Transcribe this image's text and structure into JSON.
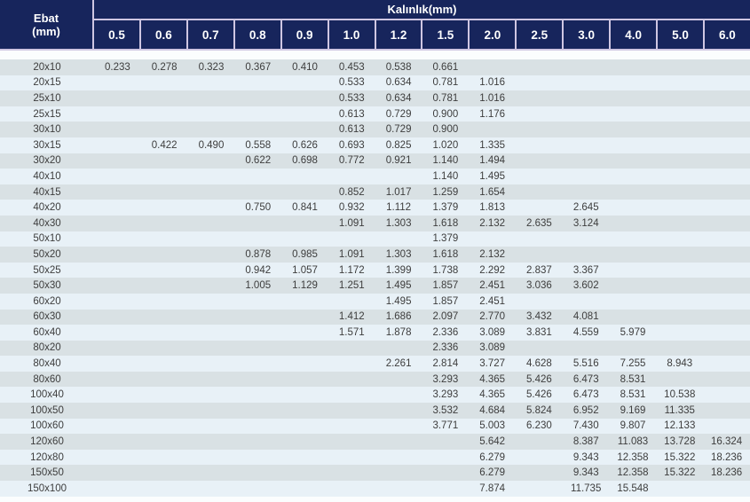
{
  "header": {
    "size_label_line1": "Ebat",
    "size_label_line2": "(mm)",
    "thickness_title": "Kalınlık(mm)"
  },
  "colors": {
    "header_bg": "#17255c",
    "header_border": "#cfc6e2",
    "row_odd": "#d9e1e4",
    "row_even": "#e8f1f7",
    "text": "#3d3d3d"
  },
  "chart_data": {
    "type": "table",
    "title": "Kalınlık(mm)",
    "row_header_label": "Ebat (mm)",
    "columns": [
      "0.5",
      "0.6",
      "0.7",
      "0.8",
      "0.9",
      "1.0",
      "1.2",
      "1.5",
      "2.0",
      "2.5",
      "3.0",
      "4.0",
      "5.0",
      "6.0"
    ],
    "rows": [
      {
        "size": "20x10",
        "values": [
          "0.233",
          "0.278",
          "0.323",
          "0.367",
          "0.410",
          "0.453",
          "0.538",
          "0.661",
          "",
          "",
          "",
          "",
          "",
          ""
        ]
      },
      {
        "size": "20x15",
        "values": [
          "",
          "",
          "",
          "",
          "",
          "0.533",
          "0.634",
          "0.781",
          "1.016",
          "",
          "",
          "",
          "",
          ""
        ]
      },
      {
        "size": "25x10",
        "values": [
          "",
          "",
          "",
          "",
          "",
          "0.533",
          "0.634",
          "0.781",
          "1.016",
          "",
          "",
          "",
          "",
          ""
        ]
      },
      {
        "size": "25x15",
        "values": [
          "",
          "",
          "",
          "",
          "",
          "0.613",
          "0.729",
          "0.900",
          "1.176",
          "",
          "",
          "",
          "",
          ""
        ]
      },
      {
        "size": "30x10",
        "values": [
          "",
          "",
          "",
          "",
          "",
          "0.613",
          "0.729",
          "0.900",
          "",
          "",
          "",
          "",
          "",
          ""
        ]
      },
      {
        "size": "30x15",
        "values": [
          "",
          "0.422",
          "0.490",
          "0.558",
          "0.626",
          "0.693",
          "0.825",
          "1.020",
          "1.335",
          "",
          "",
          "",
          "",
          ""
        ]
      },
      {
        "size": "30x20",
        "values": [
          "",
          "",
          "",
          "0.622",
          "0.698",
          "0.772",
          "0.921",
          "1.140",
          "1.494",
          "",
          "",
          "",
          "",
          ""
        ]
      },
      {
        "size": "40x10",
        "values": [
          "",
          "",
          "",
          "",
          "",
          "",
          "",
          "1.140",
          "1.495",
          "",
          "",
          "",
          "",
          ""
        ]
      },
      {
        "size": "40x15",
        "values": [
          "",
          "",
          "",
          "",
          "",
          "0.852",
          "1.017",
          "1.259",
          "1.654",
          "",
          "",
          "",
          "",
          ""
        ]
      },
      {
        "size": "40x20",
        "values": [
          "",
          "",
          "",
          "0.750",
          "0.841",
          "0.932",
          "1.112",
          "1.379",
          "1.813",
          "",
          "2.645",
          "",
          "",
          ""
        ]
      },
      {
        "size": "40x30",
        "values": [
          "",
          "",
          "",
          "",
          "",
          "1.091",
          "1.303",
          "1.618",
          "2.132",
          "2.635",
          "3.124",
          "",
          "",
          ""
        ]
      },
      {
        "size": "50x10",
        "values": [
          "",
          "",
          "",
          "",
          "",
          "",
          "",
          "1.379",
          "",
          "",
          "",
          "",
          "",
          ""
        ]
      },
      {
        "size": "50x20",
        "values": [
          "",
          "",
          "",
          "0.878",
          "0.985",
          "1.091",
          "1.303",
          "1.618",
          "2.132",
          "",
          "",
          "",
          "",
          ""
        ]
      },
      {
        "size": "50x25",
        "values": [
          "",
          "",
          "",
          "0.942",
          "1.057",
          "1.172",
          "1.399",
          "1.738",
          "2.292",
          "2.837",
          "3.367",
          "",
          "",
          ""
        ]
      },
      {
        "size": "50x30",
        "values": [
          "",
          "",
          "",
          "1.005",
          "1.129",
          "1.251",
          "1.495",
          "1.857",
          "2.451",
          "3.036",
          "3.602",
          "",
          "",
          ""
        ]
      },
      {
        "size": "60x20",
        "values": [
          "",
          "",
          "",
          "",
          "",
          "",
          "1.495",
          "1.857",
          "2.451",
          "",
          "",
          "",
          "",
          ""
        ]
      },
      {
        "size": "60x30",
        "values": [
          "",
          "",
          "",
          "",
          "",
          "1.412",
          "1.686",
          "2.097",
          "2.770",
          "3.432",
          "4.081",
          "",
          "",
          ""
        ]
      },
      {
        "size": "60x40",
        "values": [
          "",
          "",
          "",
          "",
          "",
          "1.571",
          "1.878",
          "2.336",
          "3.089",
          "3.831",
          "4.559",
          "5.979",
          "",
          ""
        ]
      },
      {
        "size": "80x20",
        "values": [
          "",
          "",
          "",
          "",
          "",
          "",
          "",
          "2.336",
          "3.089",
          "",
          "",
          "",
          "",
          ""
        ]
      },
      {
        "size": "80x40",
        "values": [
          "",
          "",
          "",
          "",
          "",
          "",
          "2.261",
          "2.814",
          "3.727",
          "4.628",
          "5.516",
          "7.255",
          "8.943",
          ""
        ]
      },
      {
        "size": "80x60",
        "values": [
          "",
          "",
          "",
          "",
          "",
          "",
          "",
          "3.293",
          "4.365",
          "5.426",
          "6.473",
          "8.531",
          "",
          ""
        ]
      },
      {
        "size": "100x40",
        "values": [
          "",
          "",
          "",
          "",
          "",
          "",
          "",
          "3.293",
          "4.365",
          "5.426",
          "6.473",
          "8.531",
          "10.538",
          ""
        ]
      },
      {
        "size": "100x50",
        "values": [
          "",
          "",
          "",
          "",
          "",
          "",
          "",
          "3.532",
          "4.684",
          "5.824",
          "6.952",
          "9.169",
          "11.335",
          ""
        ]
      },
      {
        "size": "100x60",
        "values": [
          "",
          "",
          "",
          "",
          "",
          "",
          "",
          "3.771",
          "5.003",
          "6.230",
          "7.430",
          "9.807",
          "12.133",
          ""
        ]
      },
      {
        "size": "120x60",
        "values": [
          "",
          "",
          "",
          "",
          "",
          "",
          "",
          "",
          "5.642",
          "",
          "8.387",
          "11.083",
          "13.728",
          "16.324"
        ]
      },
      {
        "size": "120x80",
        "values": [
          "",
          "",
          "",
          "",
          "",
          "",
          "",
          "",
          "6.279",
          "",
          "9.343",
          "12.358",
          "15.322",
          "18.236"
        ]
      },
      {
        "size": "150x50",
        "values": [
          "",
          "",
          "",
          "",
          "",
          "",
          "",
          "",
          "6.279",
          "",
          "9.343",
          "12.358",
          "15.322",
          "18.236"
        ]
      },
      {
        "size": "150x100",
        "values": [
          "",
          "",
          "",
          "",
          "",
          "",
          "",
          "",
          "7.874",
          "",
          "11.735",
          "15.548",
          "",
          ""
        ]
      }
    ]
  }
}
